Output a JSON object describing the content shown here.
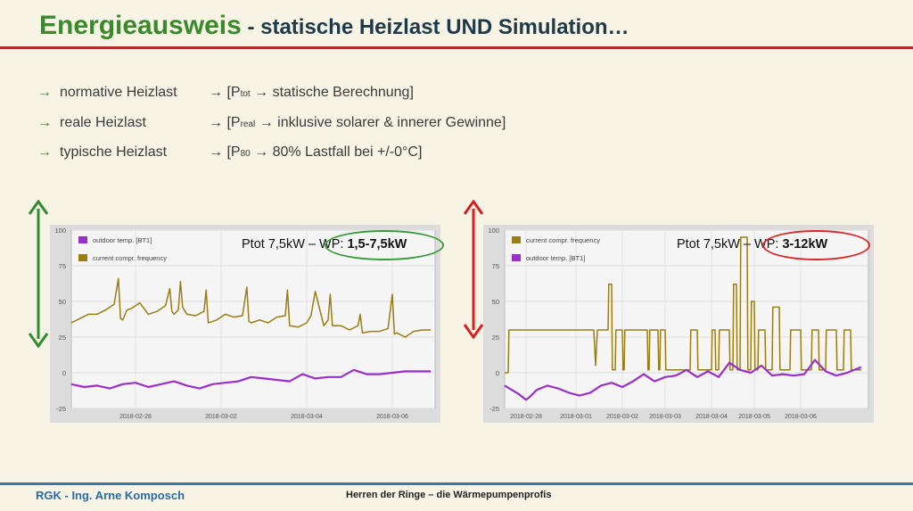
{
  "slide": {
    "title_main": "Energieausweis",
    "title_rest": " - statische Heizlast UND Simulation…",
    "rows": [
      {
        "label": "normative Heizlast",
        "desc_pre": "→ [P",
        "desc_sub": "tot",
        "desc_post": " → statische Berechnung]"
      },
      {
        "label": "reale Heizlast",
        "desc_pre": "→ [P",
        "desc_sub": "real",
        "desc_post": " → inklusive solarer & innerer Gewinne]"
      },
      {
        "label": "typische Heizlast",
        "desc_pre": "→ [P",
        "desc_sub": "80",
        "desc_post": " → 80% Lastfall bei +/-0°C]"
      }
    ],
    "row_arrow": "→",
    "footer_left": "RGK - Ing. Arne Komposch",
    "footer_center": "Herren der Ringe – die Wärmepumpenprofis",
    "colors": {
      "title_green": "#3a8a2c",
      "rule_red": "#b52a2a",
      "arrow_green": "#2e8b2e",
      "arrow_red": "#d81e1e",
      "footer_blue": "#2a6aa5"
    }
  },
  "chart_data": [
    {
      "type": "line",
      "annotation": {
        "prefix": "Ptot 7,5kW – ",
        "wp_label": "WP: ",
        "wp_value": "1,5-7,5kW",
        "oval_color": "#3a9a3a"
      },
      "y_ticks": [
        100,
        75,
        50,
        25,
        0,
        -25
      ],
      "ylim": [
        -25,
        100
      ],
      "xlim": [
        0,
        8.5
      ],
      "x_ticks": [
        {
          "x": 1.5,
          "label": "2018-02-28"
        },
        {
          "x": 3.5,
          "label": "2018-03-02"
        },
        {
          "x": 5.5,
          "label": "2018-03-04"
        },
        {
          "x": 7.5,
          "label": "2018-03-06"
        }
      ],
      "legend_position": "top-left",
      "legend": [
        {
          "name": "outdoor temp. [BT1]",
          "color": "#9b30c8"
        },
        {
          "name": "current compr. frequency",
          "color": "#9a7d14"
        }
      ],
      "series": [
        {
          "name": "current compr. frequency",
          "color": "#9a7d14",
          "x": [
            0,
            0.2,
            0.4,
            0.6,
            0.8,
            1,
            1.1,
            1.15,
            1.2,
            1.3,
            1.4,
            1.6,
            1.8,
            2.0,
            2.2,
            2.3,
            2.35,
            2.4,
            2.5,
            2.55,
            2.6,
            2.7,
            2.9,
            3.1,
            3.15,
            3.2,
            3.4,
            3.6,
            3.7,
            3.8,
            4.0,
            4.1,
            4.15,
            4.2,
            4.4,
            4.6,
            4.8,
            5.0,
            5.05,
            5.1,
            5.3,
            5.5,
            5.6,
            5.7,
            5.9,
            6.0,
            6.05,
            6.1,
            6.3,
            6.5,
            6.7,
            6.75,
            6.8,
            7.0,
            7.2,
            7.4,
            7.5,
            7.55,
            7.6,
            7.8,
            8.0,
            8.2,
            8.4
          ],
          "values": [
            35,
            38,
            41,
            41,
            44,
            48,
            66,
            38,
            37,
            44,
            45,
            49,
            41,
            43,
            47,
            59,
            43,
            41,
            44,
            64,
            46,
            41,
            40,
            43,
            58,
            35,
            37,
            41,
            40,
            39,
            40,
            60,
            36,
            35,
            37,
            35,
            39,
            40,
            58,
            33,
            32,
            35,
            40,
            57,
            33,
            37,
            55,
            33,
            33,
            30,
            33,
            41,
            28,
            29,
            29,
            31,
            55,
            27,
            28,
            25,
            29,
            30,
            30
          ]
        },
        {
          "name": "outdoor temp. [BT1]",
          "color": "#9b30c8",
          "x": [
            0,
            0.3,
            0.6,
            0.9,
            1.2,
            1.5,
            1.8,
            2.1,
            2.4,
            2.7,
            3.0,
            3.3,
            3.6,
            3.9,
            4.2,
            4.5,
            4.8,
            5.1,
            5.4,
            5.7,
            6.0,
            6.3,
            6.6,
            6.9,
            7.2,
            7.5,
            7.8,
            8.1,
            8.4
          ],
          "values": [
            -8,
            -10,
            -9,
            -11,
            -8,
            -7,
            -10,
            -8,
            -6,
            -9,
            -11,
            -8,
            -7,
            -6,
            -3,
            -4,
            -5,
            -6,
            -1,
            -4,
            -3,
            -3,
            2,
            -1,
            -1,
            0,
            1,
            1,
            1
          ]
        }
      ]
    },
    {
      "type": "line",
      "annotation": {
        "prefix": "Ptot 7,5kW – ",
        "wp_label": "WP: ",
        "wp_value": "3-12kW",
        "oval_color": "#d82828"
      },
      "y_ticks": [
        100,
        75,
        50,
        25,
        0,
        -25
      ],
      "ylim": [
        -25,
        100
      ],
      "xlim": [
        0,
        10.2
      ],
      "x_ticks": [
        {
          "x": 0.6,
          "label": "2018-02-28"
        },
        {
          "x": 2.0,
          "label": "2018-03-01"
        },
        {
          "x": 3.3,
          "label": "2018-03-02"
        },
        {
          "x": 4.5,
          "label": "2018-03-03"
        },
        {
          "x": 5.8,
          "label": "2018-03-04"
        },
        {
          "x": 7.0,
          "label": "2018-03-05"
        },
        {
          "x": 8.3,
          "label": "2018-03-06"
        }
      ],
      "legend_position": "top-left",
      "legend": [
        {
          "name": "current compr. frequency",
          "color": "#9a7d14"
        },
        {
          "name": "outdoor temp. [BT1]",
          "color": "#9b30c8"
        }
      ],
      "series": [
        {
          "name": "current compr. frequency",
          "color": "#9a7d14",
          "x": [
            0,
            0.1,
            0.12,
            2.5,
            2.55,
            2.6,
            2.9,
            2.92,
            3.0,
            3.02,
            3.1,
            3.12,
            3.3,
            3.32,
            3.35,
            3.37,
            4.0,
            4.02,
            4.05,
            4.07,
            4.3,
            4.32,
            4.35,
            4.37,
            4.5,
            4.52,
            5.2,
            5.22,
            5.4,
            5.42,
            5.8,
            5.82,
            5.9,
            5.92,
            6.0,
            6.02,
            6.3,
            6.32,
            6.4,
            6.42,
            6.5,
            6.52,
            6.6,
            6.62,
            6.8,
            6.82,
            6.9,
            6.92,
            7.0,
            7.02,
            7.1,
            7.12,
            7.3,
            7.32,
            7.5,
            7.52,
            7.7,
            7.72,
            8.0,
            8.02,
            8.3,
            8.32,
            8.6,
            8.62,
            8.8,
            8.82,
            9.0,
            9.02,
            9.3,
            9.32,
            9.5,
            9.52,
            9.7,
            9.72,
            10.0
          ],
          "values": [
            0,
            0,
            30,
            30,
            5,
            30,
            30,
            62,
            62,
            2,
            2,
            30,
            30,
            2,
            2,
            30,
            30,
            2,
            2,
            30,
            30,
            2,
            2,
            30,
            30,
            2,
            2,
            30,
            30,
            2,
            2,
            30,
            30,
            2,
            2,
            30,
            30,
            2,
            2,
            62,
            62,
            2,
            2,
            95,
            95,
            2,
            2,
            50,
            50,
            2,
            2,
            30,
            30,
            2,
            2,
            46,
            46,
            2,
            2,
            30,
            30,
            2,
            2,
            30,
            30,
            2,
            2,
            30,
            30,
            2,
            2,
            30,
            30,
            2,
            2
          ]
        },
        {
          "name": "outdoor temp. [BT1]",
          "color": "#9b30c8",
          "x": [
            0,
            0.2,
            0.4,
            0.6,
            0.7,
            0.9,
            1.2,
            1.5,
            1.8,
            2.1,
            2.4,
            2.7,
            3.0,
            3.3,
            3.6,
            3.9,
            4.2,
            4.5,
            4.8,
            5.1,
            5.4,
            5.7,
            6.0,
            6.3,
            6.6,
            6.9,
            7.2,
            7.5,
            7.8,
            8.1,
            8.4,
            8.7,
            9.0,
            9.3,
            9.6,
            10.0
          ],
          "values": [
            -9,
            -12,
            -15,
            -19,
            -17,
            -12,
            -9,
            -11,
            -14,
            -16,
            -14,
            -9,
            -7,
            -10,
            -6,
            -1,
            -6,
            -3,
            -2,
            2,
            -3,
            1,
            -3,
            7,
            2,
            0,
            5,
            -2,
            -1,
            -2,
            -1,
            9,
            1,
            -2,
            0,
            4
          ]
        }
      ]
    }
  ]
}
